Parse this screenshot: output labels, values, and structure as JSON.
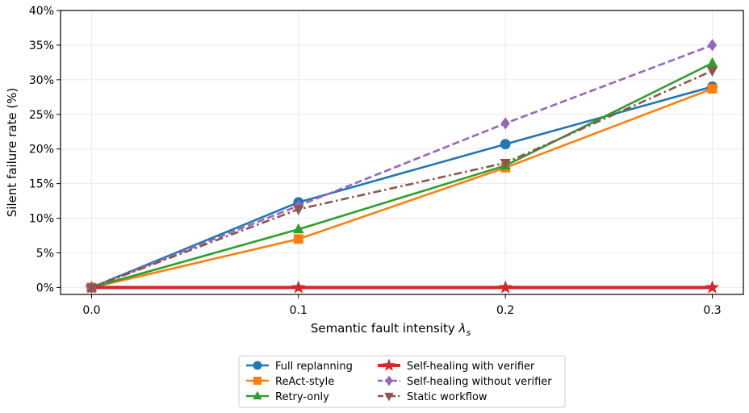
{
  "chart_data": {
    "type": "line",
    "title": "",
    "xlabel": "Semantic fault intensity",
    "xlabel_symbol": "λ",
    "xlabel_subscript": "s",
    "ylabel": "Silent failure rate (%)",
    "x": [
      0.0,
      0.1,
      0.2,
      0.3
    ],
    "x_tick_labels": [
      "0.0",
      "0.1",
      "0.2",
      "0.3"
    ],
    "xlim": [
      -0.015,
      0.315
    ],
    "ylim": [
      -1,
      40
    ],
    "y_ticks": [
      0,
      5,
      10,
      15,
      20,
      25,
      30,
      35,
      40
    ],
    "y_tick_labels": [
      "0%",
      "5%",
      "10%",
      "15%",
      "20%",
      "25%",
      "30%",
      "35%",
      "40%"
    ],
    "grid": true,
    "legend_placement": "bottom-center, below plot, 2 columns",
    "series": [
      {
        "name": "Full replanning",
        "values": [
          0,
          12.3,
          20.7,
          29.0
        ],
        "color": "#1f77b4",
        "marker": "circle",
        "dash": "solid"
      },
      {
        "name": "ReAct-style",
        "values": [
          0,
          7.0,
          17.3,
          28.7
        ],
        "color": "#ff7f0e",
        "marker": "square",
        "dash": "solid"
      },
      {
        "name": "Retry-only",
        "values": [
          0,
          8.4,
          17.6,
          32.4
        ],
        "color": "#2ca02c",
        "marker": "triangle-up",
        "dash": "solid"
      },
      {
        "name": "Self-healing with verifier",
        "values": [
          0,
          0,
          0,
          0
        ],
        "color": "#d62728",
        "marker": "star",
        "dash": "solid"
      },
      {
        "name": "Self-healing without verifier",
        "values": [
          0,
          11.8,
          23.7,
          35.0
        ],
        "color": "#9467bd",
        "marker": "diamond",
        "dash": "dashed"
      },
      {
        "name": "Static workflow",
        "values": [
          0,
          11.3,
          18.0,
          31.3
        ],
        "color": "#8c564b",
        "marker": "triangle-down",
        "dash": "dashdot"
      }
    ]
  }
}
